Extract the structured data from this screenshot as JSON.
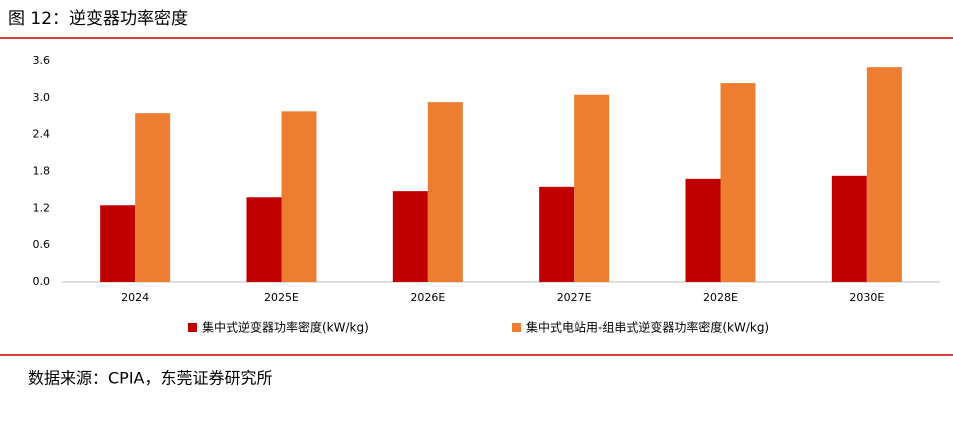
{
  "chart_data": {
    "type": "bar",
    "title": "图 12：逆变器功率密度",
    "source": "数据来源：CPIA，东莞证券研究所",
    "categories": [
      "2024",
      "2025E",
      "2026E",
      "2027E",
      "2028E",
      "2030E"
    ],
    "series": [
      {
        "name": "集中式逆变器功率密度(kW/kg)",
        "color": "#c00000",
        "values": [
          1.25,
          1.38,
          1.48,
          1.55,
          1.68,
          1.73
        ]
      },
      {
        "name": "集中式电站用-组串式逆变器功率密度(kW/kg)",
        "color": "#ed7d31",
        "values": [
          2.75,
          2.78,
          2.93,
          3.05,
          3.24,
          3.5
        ]
      }
    ],
    "ylim": [
      0,
      3.6
    ],
    "yticks": [
      {
        "value": 0,
        "label": "0.0"
      },
      0.6,
      1.2,
      1.8,
      2.4,
      {
        "value": 3,
        "label": "3.0"
      },
      3.6
    ],
    "grid": false
  }
}
